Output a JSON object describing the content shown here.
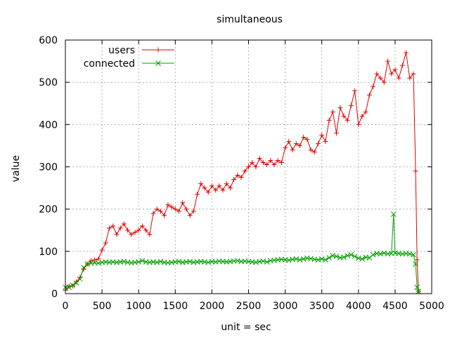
{
  "chart_data": {
    "type": "line",
    "title": "simultaneous",
    "xlabel": "unit = sec",
    "ylabel": "value",
    "xlim": [
      0,
      5000
    ],
    "ylim": [
      0,
      600
    ],
    "x_ticks": [
      0,
      500,
      1000,
      1500,
      2000,
      2500,
      3000,
      3500,
      4000,
      4500,
      5000
    ],
    "y_ticks": [
      0,
      100,
      200,
      300,
      400,
      500,
      600
    ],
    "grid": true,
    "legend_position": "top-left",
    "series": [
      {
        "name": "users",
        "color": "#e00000",
        "marker": "plus",
        "points": [
          [
            0,
            8
          ],
          [
            50,
            18
          ],
          [
            100,
            18
          ],
          [
            150,
            28
          ],
          [
            200,
            38
          ],
          [
            250,
            58
          ],
          [
            300,
            70
          ],
          [
            350,
            78
          ],
          [
            400,
            80
          ],
          [
            450,
            82
          ],
          [
            500,
            103
          ],
          [
            550,
            120
          ],
          [
            600,
            155
          ],
          [
            650,
            160
          ],
          [
            700,
            140
          ],
          [
            750,
            155
          ],
          [
            800,
            165
          ],
          [
            850,
            150
          ],
          [
            900,
            140
          ],
          [
            950,
            145
          ],
          [
            1000,
            150
          ],
          [
            1050,
            160
          ],
          [
            1100,
            150
          ],
          [
            1150,
            140
          ],
          [
            1200,
            190
          ],
          [
            1250,
            200
          ],
          [
            1300,
            195
          ],
          [
            1350,
            185
          ],
          [
            1400,
            210
          ],
          [
            1450,
            205
          ],
          [
            1500,
            200
          ],
          [
            1550,
            195
          ],
          [
            1600,
            215
          ],
          [
            1650,
            200
          ],
          [
            1700,
            185
          ],
          [
            1750,
            195
          ],
          [
            1800,
            235
          ],
          [
            1850,
            260
          ],
          [
            1900,
            250
          ],
          [
            1950,
            240
          ],
          [
            2000,
            255
          ],
          [
            2050,
            245
          ],
          [
            2100,
            255
          ],
          [
            2150,
            245
          ],
          [
            2200,
            260
          ],
          [
            2250,
            250
          ],
          [
            2300,
            270
          ],
          [
            2350,
            280
          ],
          [
            2400,
            275
          ],
          [
            2450,
            290
          ],
          [
            2500,
            300
          ],
          [
            2550,
            310
          ],
          [
            2600,
            300
          ],
          [
            2650,
            320
          ],
          [
            2700,
            310
          ],
          [
            2750,
            305
          ],
          [
            2800,
            315
          ],
          [
            2850,
            305
          ],
          [
            2900,
            315
          ],
          [
            2950,
            310
          ],
          [
            3000,
            345
          ],
          [
            3050,
            360
          ],
          [
            3100,
            340
          ],
          [
            3150,
            355
          ],
          [
            3200,
            350
          ],
          [
            3250,
            370
          ],
          [
            3300,
            365
          ],
          [
            3350,
            340
          ],
          [
            3400,
            335
          ],
          [
            3450,
            355
          ],
          [
            3500,
            375
          ],
          [
            3550,
            360
          ],
          [
            3600,
            410
          ],
          [
            3650,
            430
          ],
          [
            3700,
            380
          ],
          [
            3750,
            440
          ],
          [
            3800,
            420
          ],
          [
            3850,
            410
          ],
          [
            3900,
            445
          ],
          [
            3950,
            480
          ],
          [
            4000,
            400
          ],
          [
            4050,
            420
          ],
          [
            4100,
            430
          ],
          [
            4150,
            470
          ],
          [
            4200,
            490
          ],
          [
            4250,
            520
          ],
          [
            4300,
            510
          ],
          [
            4350,
            500
          ],
          [
            4400,
            550
          ],
          [
            4450,
            520
          ],
          [
            4500,
            530
          ],
          [
            4550,
            510
          ],
          [
            4600,
            540
          ],
          [
            4650,
            570
          ],
          [
            4700,
            510
          ],
          [
            4750,
            520
          ],
          [
            4780,
            290
          ],
          [
            4800,
            80
          ],
          [
            4820,
            5
          ]
        ]
      },
      {
        "name": "connected",
        "color": "#00a000",
        "marker": "cross",
        "points": [
          [
            0,
            15
          ],
          [
            50,
            15
          ],
          [
            100,
            20
          ],
          [
            150,
            25
          ],
          [
            200,
            35
          ],
          [
            250,
            62
          ],
          [
            300,
            70
          ],
          [
            350,
            72
          ],
          [
            400,
            73
          ],
          [
            450,
            72
          ],
          [
            500,
            74
          ],
          [
            550,
            75
          ],
          [
            600,
            74
          ],
          [
            650,
            75
          ],
          [
            700,
            74
          ],
          [
            750,
            75
          ],
          [
            800,
            76
          ],
          [
            850,
            74
          ],
          [
            900,
            73
          ],
          [
            950,
            74
          ],
          [
            1000,
            75
          ],
          [
            1050,
            78
          ],
          [
            1100,
            75
          ],
          [
            1150,
            74
          ],
          [
            1200,
            75
          ],
          [
            1250,
            74
          ],
          [
            1300,
            76
          ],
          [
            1350,
            74
          ],
          [
            1400,
            73
          ],
          [
            1450,
            74
          ],
          [
            1500,
            75
          ],
          [
            1550,
            76
          ],
          [
            1600,
            74
          ],
          [
            1650,
            75
          ],
          [
            1700,
            76
          ],
          [
            1750,
            74
          ],
          [
            1800,
            75
          ],
          [
            1850,
            76
          ],
          [
            1900,
            75
          ],
          [
            1950,
            74
          ],
          [
            2000,
            76
          ],
          [
            2050,
            75
          ],
          [
            2100,
            77
          ],
          [
            2150,
            76
          ],
          [
            2200,
            75
          ],
          [
            2250,
            76
          ],
          [
            2300,
            77
          ],
          [
            2350,
            78
          ],
          [
            2400,
            76
          ],
          [
            2450,
            77
          ],
          [
            2500,
            76
          ],
          [
            2550,
            75
          ],
          [
            2600,
            74
          ],
          [
            2650,
            76
          ],
          [
            2700,
            77
          ],
          [
            2750,
            75
          ],
          [
            2800,
            78
          ],
          [
            2850,
            79
          ],
          [
            2900,
            80
          ],
          [
            2950,
            81
          ],
          [
            3000,
            80
          ],
          [
            3050,
            79
          ],
          [
            3100,
            81
          ],
          [
            3150,
            82
          ],
          [
            3200,
            80
          ],
          [
            3250,
            82
          ],
          [
            3300,
            84
          ],
          [
            3350,
            83
          ],
          [
            3400,
            81
          ],
          [
            3450,
            80
          ],
          [
            3500,
            82
          ],
          [
            3550,
            80
          ],
          [
            3600,
            85
          ],
          [
            3650,
            90
          ],
          [
            3700,
            88
          ],
          [
            3750,
            85
          ],
          [
            3800,
            86
          ],
          [
            3850,
            90
          ],
          [
            3900,
            92
          ],
          [
            3950,
            88
          ],
          [
            4000,
            84
          ],
          [
            4050,
            82
          ],
          [
            4100,
            86
          ],
          [
            4150,
            85
          ],
          [
            4200,
            92
          ],
          [
            4250,
            95
          ],
          [
            4300,
            94
          ],
          [
            4350,
            96
          ],
          [
            4400,
            94
          ],
          [
            4450,
            95
          ],
          [
            4480,
            188
          ],
          [
            4500,
            96
          ],
          [
            4550,
            95
          ],
          [
            4600,
            94
          ],
          [
            4650,
            95
          ],
          [
            4700,
            94
          ],
          [
            4750,
            92
          ],
          [
            4780,
            70
          ],
          [
            4800,
            15
          ],
          [
            4820,
            5
          ]
        ]
      }
    ]
  }
}
